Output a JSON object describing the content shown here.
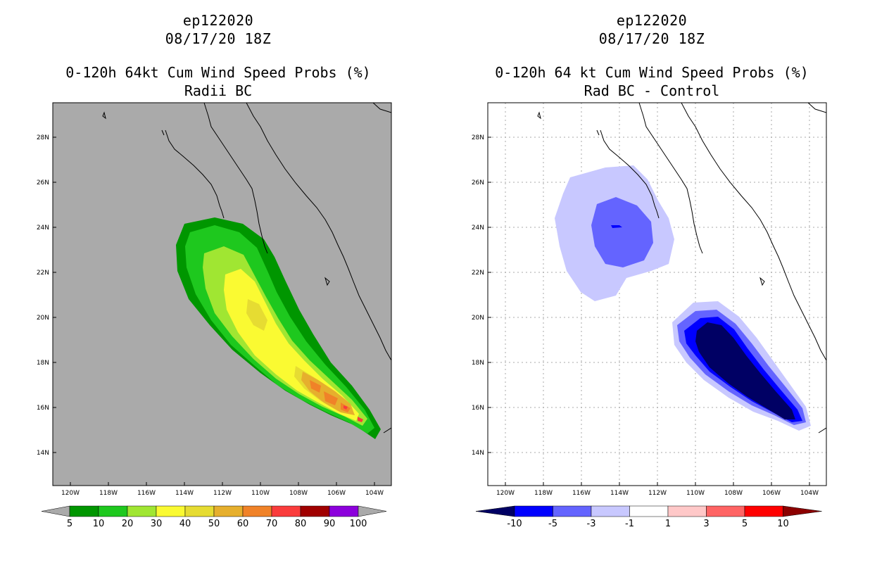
{
  "left_panel": {
    "storm_id": "ep122020",
    "date": "08/17/20 18Z",
    "title": "0-120h 64kt Cum Wind Speed Probs (%)",
    "subtitle": "Radii BC",
    "lat_labels": [
      "28N",
      "26N",
      "24N",
      "22N",
      "20N",
      "18N",
      "16N",
      "14N"
    ],
    "lon_labels": [
      "120W",
      "118W",
      "116W",
      "114W",
      "112W",
      "110W",
      "108W",
      "106W",
      "104W"
    ],
    "colorbar": {
      "labels": [
        "5",
        "10",
        "20",
        "30",
        "40",
        "50",
        "60",
        "70",
        "80",
        "90",
        "100"
      ],
      "colors": [
        "#009600",
        "#1ec81e",
        "#a0e632",
        "#fafa32",
        "#e6dc32",
        "#e6af2d",
        "#f08228",
        "#fa3c3c",
        "#a00000",
        "#8c00dc"
      ]
    }
  },
  "right_panel": {
    "storm_id": "ep122020",
    "date": "08/17/20 18Z",
    "title": "0-120h 64 kt Cum Wind Speed Probs (%)",
    "subtitle": "Rad BC - Control",
    "lat_labels": [
      "28N",
      "26N",
      "24N",
      "22N",
      "20N",
      "18N",
      "16N",
      "14N"
    ],
    "lon_labels": [
      "120W",
      "118W",
      "116W",
      "114W",
      "112W",
      "110W",
      "108W",
      "106W",
      "104W"
    ],
    "colorbar": {
      "labels": [
        "-10",
        "-5",
        "-3",
        "-1",
        "1",
        "3",
        "5",
        "10"
      ],
      "colors": [
        "#000064",
        "#0000ff",
        "#6464ff",
        "#c8c8ff",
        "#ffffff",
        "#ffc8c8",
        "#ff6464",
        "#ff0000",
        "#8c0000"
      ]
    }
  }
}
